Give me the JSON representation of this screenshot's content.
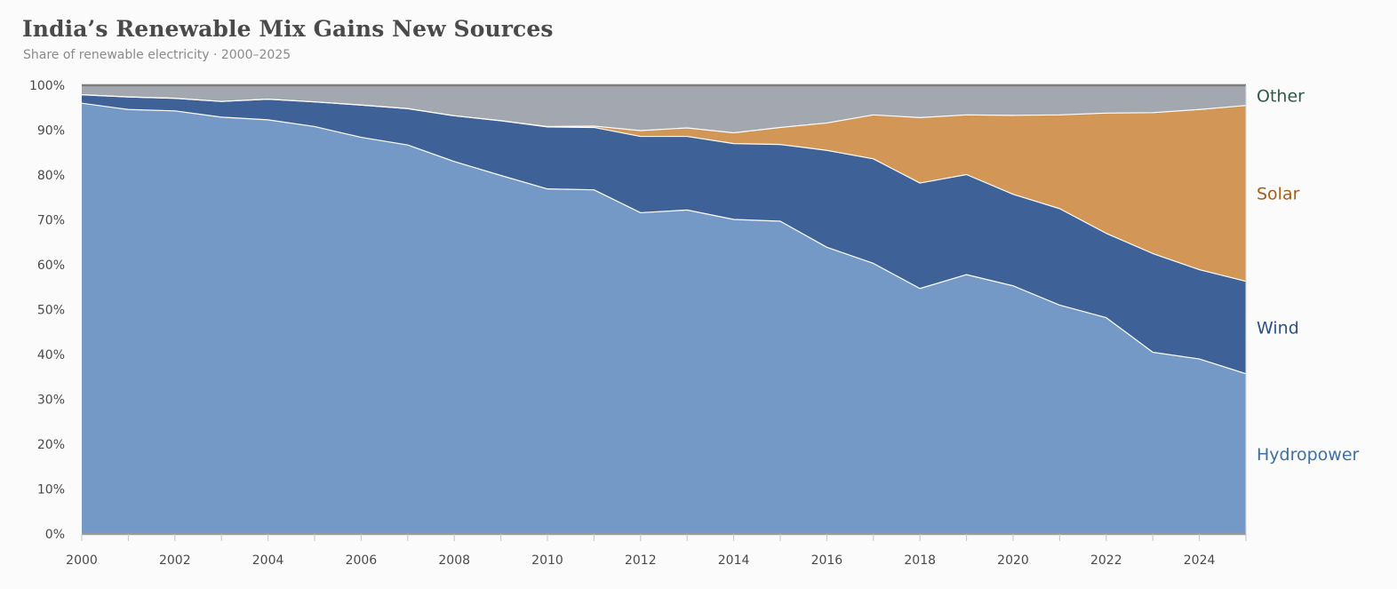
{
  "header": {
    "title": "India’s Renewable Mix Gains New Sources",
    "subtitle": "Share of renewable electricity · 2000–2025"
  },
  "chart_data": {
    "type": "area",
    "stacked": true,
    "normalized": true,
    "title": "India’s Renewable Mix Gains New Sources",
    "subtitle": "Share of renewable electricity · 2000–2025",
    "xlabel": "",
    "ylabel": "",
    "x": [
      2000,
      2001,
      2002,
      2003,
      2004,
      2005,
      2006,
      2007,
      2008,
      2009,
      2010,
      2011,
      2012,
      2013,
      2014,
      2015,
      2016,
      2017,
      2018,
      2019,
      2020,
      2021,
      2022,
      2023,
      2024,
      2025
    ],
    "xlim": [
      2000,
      2025
    ],
    "xticks": [
      "2000",
      "2002",
      "2004",
      "2006",
      "2008",
      "2010",
      "2012",
      "2014",
      "2016",
      "2018",
      "2020",
      "2022",
      "2024"
    ],
    "ylim": [
      0,
      100
    ],
    "yticks": [
      "0%",
      "10%",
      "20%",
      "30%",
      "40%",
      "50%",
      "60%",
      "70%",
      "80%",
      "90%",
      "100%"
    ],
    "grid": false,
    "legend": "direct labels at right edge",
    "series": [
      {
        "name": "Hydropower",
        "color": "#7499c7",
        "label_color": "#3f6fa4",
        "values": [
          96.0,
          94.6,
          94.3,
          92.9,
          92.3,
          90.8,
          88.4,
          86.7,
          83.0,
          79.9,
          76.9,
          76.7,
          71.6,
          72.2,
          70.1,
          69.7,
          63.9,
          60.3,
          54.7,
          57.8,
          55.3,
          51.0,
          48.2,
          40.5,
          39.0,
          35.7
        ]
      },
      {
        "name": "Wind",
        "color": "#3e6198",
        "label_color": "#2d4f86",
        "values": [
          1.9,
          2.8,
          2.8,
          3.5,
          4.6,
          5.5,
          7.2,
          8.1,
          10.2,
          12.2,
          13.8,
          13.9,
          17.0,
          16.4,
          16.9,
          17.1,
          21.6,
          23.3,
          23.5,
          22.3,
          20.4,
          21.5,
          18.8,
          22.0,
          19.9,
          20.6
        ]
      },
      {
        "name": "Solar",
        "color": "#d29656",
        "label_color": "#a55f18",
        "values": [
          0.0,
          0.0,
          0.0,
          0.0,
          0.0,
          0.0,
          0.0,
          0.0,
          0.0,
          0.0,
          0.1,
          0.3,
          1.3,
          1.9,
          2.4,
          3.8,
          6.1,
          9.8,
          14.6,
          13.3,
          17.6,
          20.9,
          26.8,
          31.4,
          35.7,
          39.2
        ]
      },
      {
        "name": "Other",
        "color": "#a2a7b0",
        "label_color": "#2f5a46",
        "values": [
          2.1,
          2.6,
          2.9,
          3.6,
          3.1,
          3.7,
          4.4,
          5.2,
          6.8,
          7.9,
          9.2,
          9.1,
          10.1,
          9.5,
          10.6,
          9.4,
          8.4,
          6.6,
          7.2,
          6.6,
          6.7,
          6.6,
          6.2,
          6.1,
          5.4,
          4.5
        ]
      }
    ]
  }
}
